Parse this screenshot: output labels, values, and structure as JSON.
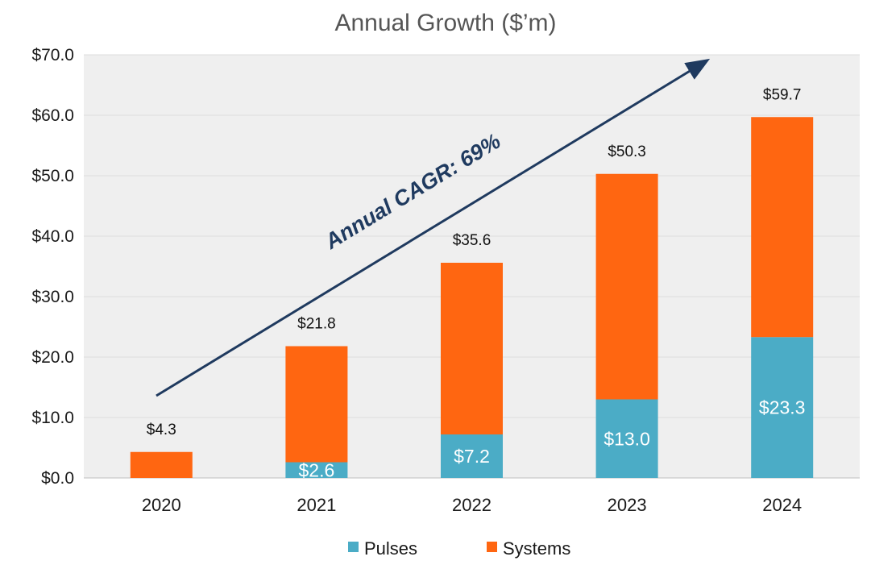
{
  "chart_data": {
    "type": "bar",
    "stacked": true,
    "title": "Annual Growth ($’m)",
    "categories": [
      "2020",
      "2021",
      "2022",
      "2023",
      "2024"
    ],
    "series": [
      {
        "name": "Pulses",
        "color": "#4bacc6",
        "values": [
          0,
          2.6,
          7.2,
          13.0,
          23.3
        ],
        "labels": [
          "",
          "$2.6",
          "$7.2",
          "$13.0",
          "$23.3"
        ]
      },
      {
        "name": "Systems",
        "color": "#ff6611",
        "values": [
          4.3,
          19.2,
          28.4,
          37.3,
          36.4
        ]
      }
    ],
    "totals": [
      4.3,
      21.8,
      35.6,
      50.3,
      59.7
    ],
    "total_labels": [
      "$4.3",
      "$21.8",
      "$35.6",
      "$50.3",
      "$59.7"
    ],
    "ylim": [
      0,
      70
    ],
    "yticks": [
      0,
      10,
      20,
      30,
      40,
      50,
      60,
      70
    ],
    "ytick_labels": [
      "$0.0",
      "$10.0",
      "$20.0",
      "$30.0",
      "$40.0",
      "$50.0",
      "$60.0",
      "$70.0"
    ],
    "grid": true,
    "legend_position": "bottom",
    "annotation": {
      "text": "Annual CAGR: 69%",
      "color": "#1f3a5f"
    },
    "plot_background": "#efefef"
  }
}
